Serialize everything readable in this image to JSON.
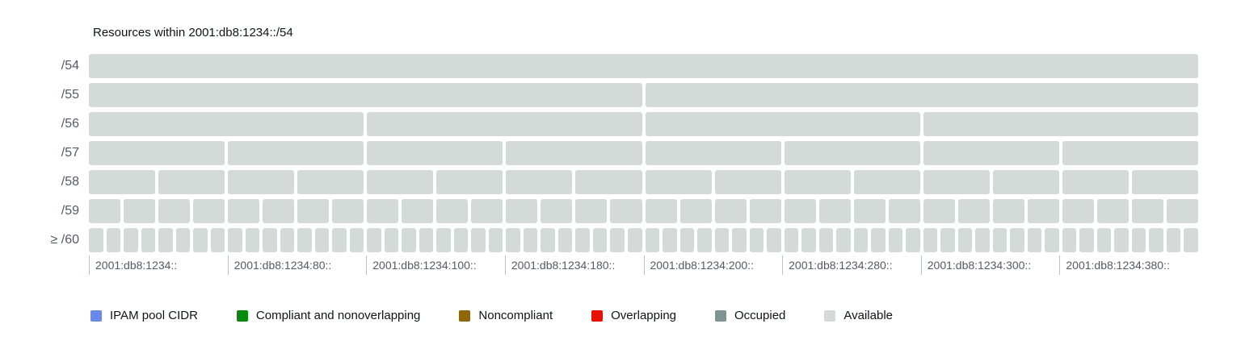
{
  "chart_data": {
    "type": "heatmap",
    "subtype": "cidr-block-subdivision-chart",
    "title": "Resources within 2001:db8:1234::/54",
    "rows": [
      {
        "label": "/54",
        "blocks": 1,
        "status": "available"
      },
      {
        "label": "/55",
        "blocks": 2,
        "status": "available"
      },
      {
        "label": "/56",
        "blocks": 4,
        "status": "available"
      },
      {
        "label": "/57",
        "blocks": 8,
        "status": "available"
      },
      {
        "label": "/58",
        "blocks": 16,
        "status": "available"
      },
      {
        "label": "/59",
        "blocks": 32,
        "status": "available"
      },
      {
        "label": "≥ /60",
        "blocks": 64,
        "status": "available"
      }
    ],
    "x_tick_labels": [
      "2001:db8:1234::",
      "2001:db8:1234:80::",
      "2001:db8:1234:100::",
      "2001:db8:1234:180::",
      "2001:db8:1234:200::",
      "2001:db8:1234:280::",
      "2001:db8:1234:300::",
      "2001:db8:1234:380::"
    ],
    "status_colors": {
      "ipam_pool_cidr": "#6889e8",
      "compliant_nonoverlapping": "#068a0c",
      "noncompliant": "#8e6708",
      "overlapping": "#e81000",
      "occupied": "#7f9494",
      "available": "#d4dad8"
    },
    "legend": [
      {
        "label": "IPAM pool CIDR",
        "status": "ipam_pool_cidr"
      },
      {
        "label": "Compliant and nonoverlapping",
        "status": "compliant_nonoverlapping"
      },
      {
        "label": "Noncompliant",
        "status": "noncompliant"
      },
      {
        "label": "Overlapping",
        "status": "overlapping"
      },
      {
        "label": "Occupied",
        "status": "occupied"
      },
      {
        "label": "Available",
        "status": "available"
      }
    ],
    "legend_position": "bottom",
    "grid": false
  }
}
